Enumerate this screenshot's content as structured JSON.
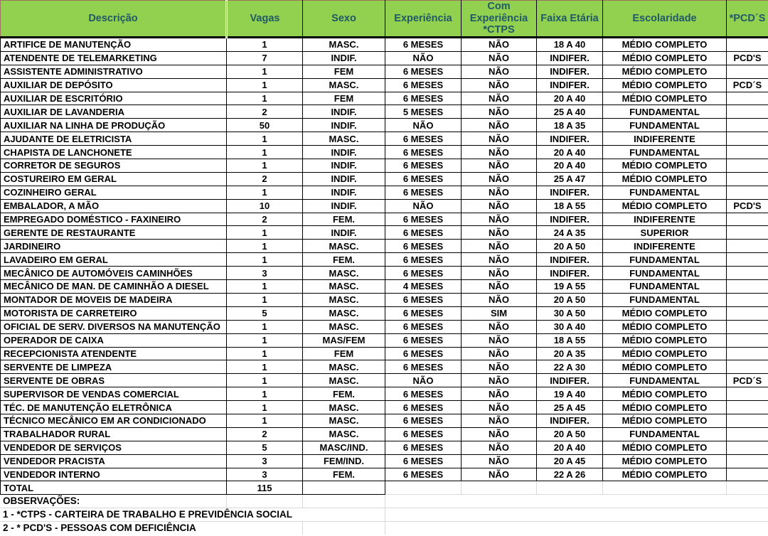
{
  "header": {
    "columns": [
      "Descrição",
      "Vagas",
      "Sexo",
      "Experiência",
      "Com Experiência *CTPS",
      "Faixa Etária",
      "Escolaridade",
      "*PCD´S"
    ]
  },
  "rows": [
    [
      "ARTIFICE DE MANUTENÇÃO",
      "1",
      "MASC.",
      "6 MESES",
      "NÃO",
      "18 A 40",
      "MÉDIO COMPLETO",
      ""
    ],
    [
      "ATENDENTE DE TELEMARKETING",
      "7",
      "INDIF.",
      "NÃO",
      "NÃO",
      "INDIFER.",
      "MÉDIO COMPLETO",
      "PCD'S"
    ],
    [
      "ASSISTENTE ADMINISTRATIVO",
      "1",
      "FEM",
      "6 MESES",
      "NÃO",
      "INDIFER.",
      "MÉDIO COMPLETO",
      ""
    ],
    [
      "AUXILIAR DE DEPÓSITO",
      "1",
      "MASC.",
      "6 MESES",
      "NÃO",
      "INDIFER.",
      "MÉDIO COMPLETO",
      "PCD´S"
    ],
    [
      "AUXILIAR DE ESCRITÓRIO",
      "1",
      "FEM",
      "6 MESES",
      "NÃO",
      "20 A 40",
      "MÉDIO COMPLETO",
      ""
    ],
    [
      "AUXILIAR DE LAVANDERIA",
      "2",
      "INDIF.",
      "5 MESES",
      "NÃO",
      "25 A 40",
      "FUNDAMENTAL",
      ""
    ],
    [
      "AUXILIAR NA LINHA DE PRODUÇÃO",
      "50",
      "INDIF.",
      "NÃO",
      "NÃO",
      "18 A 35",
      "FUNDAMENTAL",
      ""
    ],
    [
      "AJUDANTE DE ELETRICISTA",
      "1",
      "MASC.",
      "6 MESES",
      "NÃO",
      "INDIFER.",
      "INDIFERENTE",
      ""
    ],
    [
      "CHAPISTA DE LANCHONETE",
      "1",
      "INDIF.",
      "6 MESES",
      "NÃO",
      "20 A 40",
      "FUNDAMENTAL",
      ""
    ],
    [
      "CORRETOR DE SEGUROS",
      "1",
      "INDIF.",
      "6 MESES",
      "NÃO",
      "20 A 40",
      "MÉDIO COMPLETO",
      ""
    ],
    [
      "COSTUREIRO EM GERAL",
      "2",
      "INDIF.",
      "6 MESES",
      "NÃO",
      "25 A 47",
      "MÉDIO COMPLETO",
      ""
    ],
    [
      "COZINHEIRO GERAL",
      "1",
      "INDIF.",
      "6 MESES",
      "NÃO",
      "INDIFER.",
      "FUNDAMENTAL",
      ""
    ],
    [
      "EMBALADOR, A MÃO",
      "10",
      "INDIF.",
      "NÃO",
      "NÃO",
      "18 A 55",
      "MÉDIO COMPLETO",
      "PCD'S"
    ],
    [
      "EMPREGADO DOMÉSTICO - FAXINEIRO",
      "2",
      "FEM.",
      "6 MESES",
      "NÃO",
      "INDIFER.",
      "INDIFERENTE",
      ""
    ],
    [
      "GERENTE DE RESTAURANTE",
      "1",
      "INDIF.",
      "6 MESES",
      "NÃO",
      "24 A 35",
      "SUPERIOR",
      ""
    ],
    [
      "JARDINEIRO",
      "1",
      "MASC.",
      "6 MESES",
      "NÃO",
      "20 A 50",
      "INDIFERENTE",
      ""
    ],
    [
      "LAVADEIRO EM GERAL",
      "1",
      "FEM.",
      "6 MESES",
      "NÃO",
      "INDIFER.",
      "FUNDAMENTAL",
      ""
    ],
    [
      "MECÂNICO DE AUTOMÓVEIS CAMINHÕES",
      "3",
      "MASC.",
      "6 MESES",
      "NÃO",
      "INDIFER.",
      "FUNDAMENTAL",
      ""
    ],
    [
      "MECÂNICO DE MAN. DE CAMINHÃO A DIESEL",
      "1",
      "MASC.",
      "4 MESES",
      "NÃO",
      "19 A 55",
      "FUNDAMENTAL",
      ""
    ],
    [
      "MONTADOR DE MOVEIS DE MADEIRA",
      "1",
      "MASC.",
      "6 MESES",
      "NÃO",
      "20 A 50",
      "FUNDAMENTAL",
      ""
    ],
    [
      "MOTORISTA DE CARRETEIRO",
      "5",
      "MASC.",
      "6 MESES",
      "SIM",
      "30 A 50",
      "MÉDIO COMPLETO",
      ""
    ],
    [
      "OFICIAL DE SERV. DIVERSOS NA MANUTENÇÃO",
      "1",
      "MASC.",
      "6 MESES",
      "NÃO",
      "30 A  40",
      "MÉDIO COMPLETO",
      ""
    ],
    [
      "OPERADOR DE CAIXA",
      "1",
      "MAS/FEM",
      "6 MESES",
      "NÃO",
      "18 A 55",
      "MÉDIO COMPLETO",
      ""
    ],
    [
      "RECEPCIONISTA ATENDENTE",
      "1",
      "FEM",
      "6 MESES",
      "NÃO",
      "20 A 35",
      "MÉDIO COMPLETO",
      ""
    ],
    [
      "SERVENTE DE LIMPEZA",
      "1",
      "MASC.",
      "6 MESES",
      "NÃO",
      "22 A 30",
      "MÉDIO COMPLETO",
      ""
    ],
    [
      "SERVENTE DE OBRAS",
      "1",
      "MASC.",
      "NÃO",
      "NÃO",
      "INDIFER.",
      "FUNDAMENTAL",
      "PCD´S"
    ],
    [
      "SUPERVISOR DE VENDAS COMERCIAL",
      "1",
      "FEM.",
      "6 MESES",
      "NÃO",
      "19 A 40",
      "MÉDIO COMPLETO",
      ""
    ],
    [
      "TÉC. DE MANUTENÇÃO ELETRÔNICA",
      "1",
      "MASC.",
      "6 MESES",
      "NÃO",
      "25 A 45",
      "MÉDIO COMPLETO",
      ""
    ],
    [
      "TÉCNICO MECÂNICO EM AR CONDICIONADO",
      "1",
      "MASC.",
      "6 MESES",
      "NÃO",
      "INDIFER.",
      "MÉDIO COMPLETO",
      ""
    ],
    [
      "TRABALHADOR RURAL",
      "2",
      "MASC.",
      "6 MESES",
      "NÃO",
      "20 A 50",
      "FUNDAMENTAL",
      ""
    ],
    [
      "VENDEDOR DE SERVIÇOS",
      "5",
      "MASC/IND.",
      "6 MESES",
      "NÃO",
      "20 A 40",
      "MÉDIO COMPLETO",
      ""
    ],
    [
      "VENDEDOR PRACISTA",
      "3",
      "FEM/IND.",
      "6 MESES",
      "NÃO",
      "20 A 45",
      "MÉDIO COMPLETO",
      ""
    ],
    [
      "VENDEDOR INTERNO",
      "3",
      "FEM.",
      "6 MESES",
      "NÃO",
      "22 A 26",
      "MÉDIO COMPLETO",
      ""
    ]
  ],
  "total": {
    "label": "TOTAL",
    "vagas": "115"
  },
  "observations": {
    "title": "OBSERVAÇÕES:",
    "items": [
      "1 - *CTPS - CARTEIRA DE TRABALHO E PREVIDÊNCIA SOCIAL",
      "2 - * PCD'S - PESSOAS COM DEFICIÊNCIA"
    ]
  },
  "colors": {
    "header_bg": "#92D050",
    "header_text": "#215967",
    "outer_border": "#9B7262",
    "grid_line": "#D9D9D9",
    "cell_text": "#000000"
  }
}
